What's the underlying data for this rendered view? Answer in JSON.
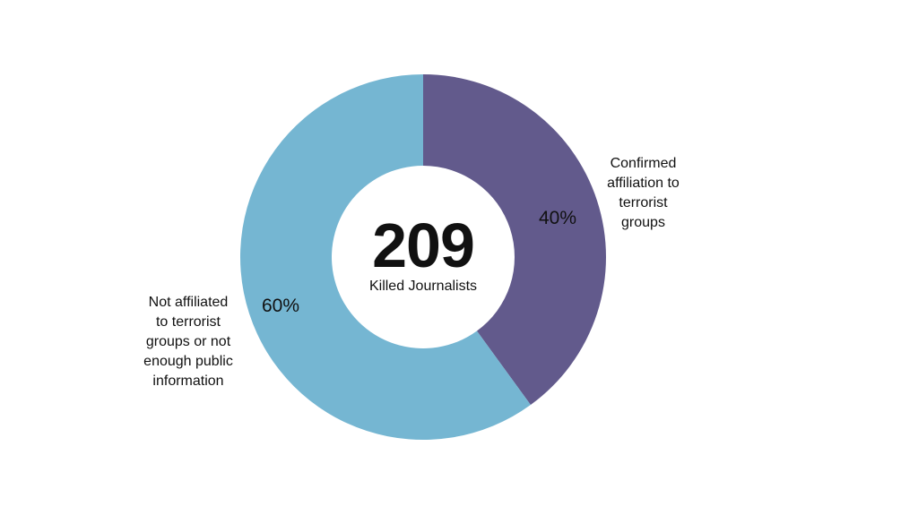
{
  "chart_data": {
    "type": "pie",
    "donut": true,
    "center_value": "209",
    "center_label": "Killed Journalists",
    "slices": [
      {
        "label": "Confirmed affiliation to terrorist groups",
        "label_lines": [
          "Confirmed",
          "affiliation to",
          "terrorist",
          "groups"
        ],
        "value": 40,
        "value_label": "40%",
        "color": "#625a8c"
      },
      {
        "label": "Not affiliated to terrorist groups or not enough public information",
        "label_lines": [
          "Not affiliated",
          "to terrorist",
          "groups or not",
          "enough public",
          "information"
        ],
        "value": 60,
        "value_label": "60%",
        "color": "#75b6d2"
      }
    ],
    "legend": "none"
  }
}
